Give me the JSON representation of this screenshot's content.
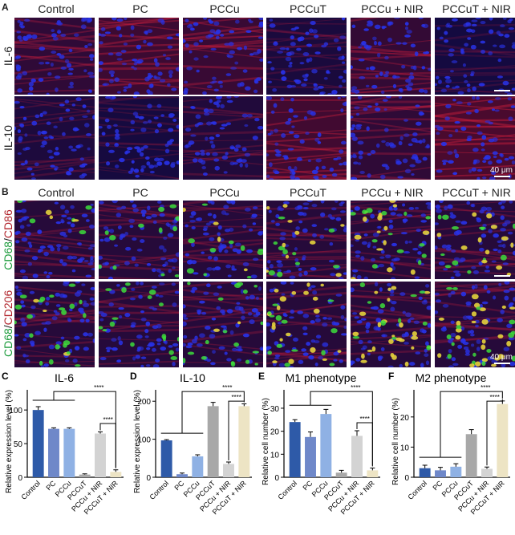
{
  "panelA": {
    "letter": "A",
    "columns": [
      "Control",
      "PC",
      "PCCu",
      "PCCuT",
      "PCCu + NIR",
      "PCCuT + NIR"
    ],
    "rows": [
      {
        "label": "IL-6",
        "red": [
          0.35,
          0.5,
          0.45,
          0.12,
          0.4,
          0.05
        ]
      },
      {
        "label": "IL-10",
        "red": [
          0.15,
          0.08,
          0.2,
          0.55,
          0.35,
          0.65
        ]
      }
    ],
    "scale": "40 μm"
  },
  "panelB": {
    "letter": "B",
    "columns": [
      "Control",
      "PC",
      "PCCu",
      "PCCuT",
      "PCCu + NIR",
      "PCCuT + NIR"
    ],
    "rows": [
      {
        "label_green": "CD68",
        "label_sep": "/",
        "label_red": "CD86"
      },
      {
        "label_green": "CD68",
        "label_sep": "/",
        "label_red": "CD206"
      }
    ],
    "scale": "40 μm"
  },
  "colors": {
    "green": "#1a9a3a",
    "red": "#b0222a",
    "blue": "#1414a0"
  },
  "chart_data": [
    {
      "letter": "C",
      "type": "bar",
      "title": "IL-6",
      "ylabel": "Relative expression level (%)",
      "categories": [
        "Control",
        "PC",
        "PCCu",
        "PCCuT",
        "PCCu + NIR",
        "PCCuT + NIR"
      ],
      "values": [
        100,
        72,
        72,
        4,
        65,
        8
      ],
      "errors": [
        5,
        1.5,
        1.5,
        1,
        2.5,
        3
      ],
      "yticks": [
        0,
        50,
        100
      ],
      "ylim": [
        0,
        130
      ],
      "sig1": "****",
      "sig2": "****"
    },
    {
      "letter": "D",
      "type": "bar",
      "title": "IL-10",
      "ylabel": "Relative expression level (%)",
      "categories": [
        "Control",
        "PC",
        "PCCu",
        "PCCuT",
        "PCCu + NIR",
        "PCCuT + NIR"
      ],
      "values": [
        97,
        8,
        55,
        187,
        35,
        187
      ],
      "errors": [
        2,
        3,
        4,
        10,
        5,
        6
      ],
      "yticks": [
        0,
        100,
        200
      ],
      "ylim": [
        0,
        230
      ],
      "sig1": "****",
      "sig2": "****"
    },
    {
      "letter": "E",
      "type": "bar",
      "title": "M1 phenotype",
      "ylabel": "Relative cell number (%)",
      "categories": [
        "Control",
        "PC",
        "PCCu",
        "PCCuT",
        "PCCu + NIR",
        "PCCuT + NIR"
      ],
      "values": [
        24,
        17.5,
        27.5,
        2,
        18,
        3
      ],
      "errors": [
        1,
        2.2,
        2,
        1,
        2.2,
        1
      ],
      "yticks": [
        0,
        10,
        20,
        30
      ],
      "ylim": [
        0,
        38
      ],
      "sig1": "****",
      "sig2": "****"
    },
    {
      "letter": "F",
      "type": "bar",
      "title": "M2 phenotype",
      "ylabel": "Relative cell number (%)",
      "categories": [
        "Control",
        "PC",
        "PCCu",
        "PCCuT",
        "PCCu + NIR",
        "PCCuT + NIR"
      ],
      "values": [
        3,
        2.3,
        3.5,
        14.3,
        2.8,
        24.3
      ],
      "errors": [
        1,
        1,
        1,
        1.5,
        0.6,
        1
      ],
      "yticks": [
        0,
        10,
        20
      ],
      "ylim": [
        0,
        29
      ],
      "sig1": "****",
      "sig2": "****"
    }
  ],
  "bar_colors": [
    "#2e5aa8",
    "#6f88c9",
    "#8fb1e4",
    "#a8a8a8",
    "#d3d3d3",
    "#ede4c4"
  ]
}
